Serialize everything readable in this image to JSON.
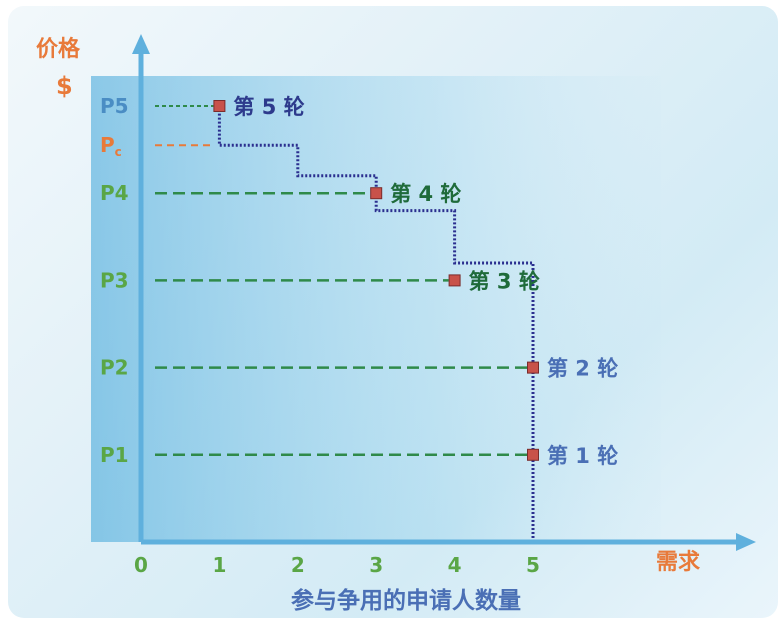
{
  "chart_data": {
    "type": "line",
    "title": "",
    "ylabel": "价格",
    "ylabel_unit": "$",
    "xlabel": "需求",
    "x_axis_caption": "参与争用的申请人数量",
    "x_ticks": [
      "0",
      "1",
      "2",
      "3",
      "4",
      "5"
    ],
    "xlim": [
      0,
      5.8
    ],
    "y_levels": [
      {
        "label": "P1",
        "color": "#5aa646"
      },
      {
        "label": "P2",
        "color": "#5aa646"
      },
      {
        "label": "P3",
        "color": "#5aa646"
      },
      {
        "label": "P4",
        "color": "#5aa646"
      },
      {
        "label": "Pc",
        "main": "P",
        "sub": "c",
        "color": "#e87a3a"
      },
      {
        "label": "P5",
        "color": "#4a8dc4"
      }
    ],
    "y_level_values": {
      "P1": 1,
      "P2": 2,
      "P3": 3,
      "P4": 4,
      "Pc": 4.55,
      "P5": 5
    },
    "ylim": [
      0,
      5.9
    ],
    "series": [
      {
        "type": "step",
        "color": "#2b2f8f",
        "points": [
          [
            5,
            0
          ],
          [
            5,
            3.2
          ],
          [
            4,
            3.2
          ],
          [
            4,
            3.45
          ],
          [
            4,
            3.8
          ],
          [
            3,
            3.8
          ],
          [
            3,
            4.2
          ],
          [
            2,
            4.2
          ],
          [
            2,
            4.55
          ],
          [
            1,
            4.55
          ],
          [
            1,
            5
          ]
        ]
      }
    ],
    "rounds": [
      {
        "label": "第 1 轮",
        "x": 5,
        "y": 1,
        "color": "#4a6fb5"
      },
      {
        "label": "第 2 轮",
        "x": 5,
        "y": 2,
        "color": "#4a6fb5"
      },
      {
        "label": "第 3 轮",
        "x": 4,
        "y": 3,
        "color": "#1f6b3a"
      },
      {
        "label": "第 4 轮",
        "x": 3,
        "y": 4,
        "color": "#1f6b3a"
      },
      {
        "label": "第 5 轮",
        "x": 1,
        "y": 5,
        "color": "#2d3a8c"
      }
    ],
    "colors": {
      "axis": "#5fb0dd",
      "level_line": "#2f8a4a",
      "pc_line": "#e87a3a",
      "p5_line": "#2f8a4a",
      "marker_fill": "#c8524a",
      "marker_stroke": "#7a2c2c",
      "tick_x": "#5aa646",
      "xlabel_color": "#e87a3a",
      "caption_color": "#4a6fb5",
      "ylabel_color": "#e87a3a"
    },
    "grid": false,
    "legend": "none"
  }
}
